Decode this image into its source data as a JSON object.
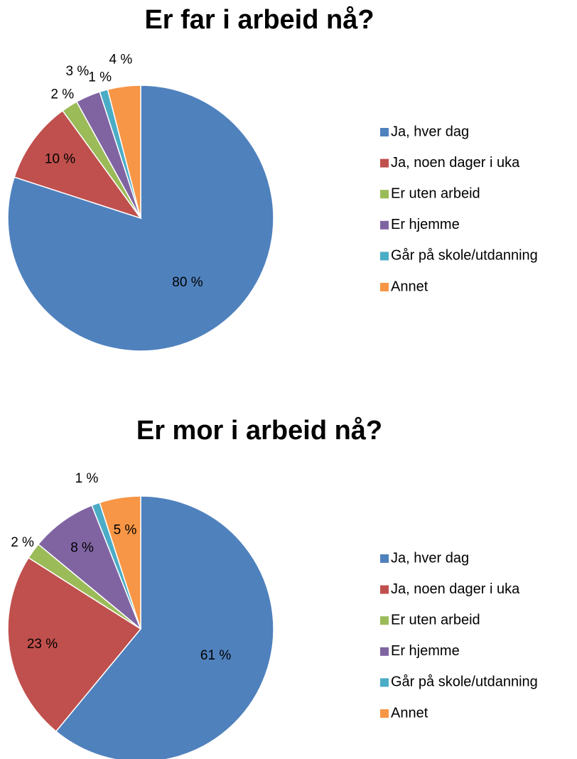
{
  "chart_data": [
    {
      "type": "pie",
      "title": "Er far i arbeid nå?",
      "categories": [
        "Ja, hver dag",
        "Ja, noen dager i uka",
        "Er uten arbeid",
        "Er hjemme",
        "Går på skole/utdanning",
        "Annet"
      ],
      "values": [
        80,
        10,
        2,
        3,
        1,
        4
      ],
      "value_labels": [
        "80 %",
        "10 %",
        "2 %",
        "3 %",
        "1 %",
        "4 %"
      ],
      "colors": [
        "#4f81bd",
        "#c0504d",
        "#9bbb59",
        "#8064a2",
        "#4bacc6",
        "#f79646"
      ],
      "legend": "right"
    },
    {
      "type": "pie",
      "title": "Er mor i arbeid nå?",
      "categories": [
        "Ja, hver dag",
        "Ja, noen dager i uka",
        "Er uten arbeid",
        "Er hjemme",
        "Går på skole/utdanning",
        "Annet"
      ],
      "values": [
        61,
        23,
        2,
        8,
        1,
        5
      ],
      "value_labels": [
        "61 %",
        "23 %",
        "2 %",
        "8 %",
        "1 %",
        "5 %"
      ],
      "colors": [
        "#4f81bd",
        "#c0504d",
        "#9bbb59",
        "#8064a2",
        "#4bacc6",
        "#f79646"
      ],
      "legend": "right"
    }
  ]
}
